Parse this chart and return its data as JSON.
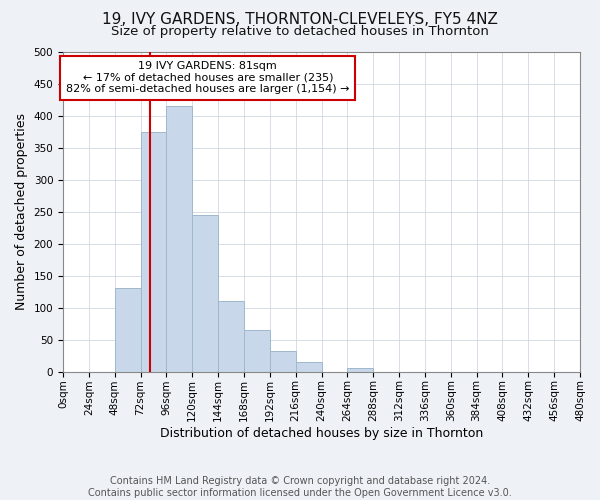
{
  "title": "19, IVY GARDENS, THORNTON-CLEVELEYS, FY5 4NZ",
  "subtitle": "Size of property relative to detached houses in Thornton",
  "xlabel": "Distribution of detached houses by size in Thornton",
  "ylabel": "Number of detached properties",
  "footer_line1": "Contains HM Land Registry data © Crown copyright and database right 2024.",
  "footer_line2": "Contains public sector information licensed under the Open Government Licence v3.0.",
  "bin_edges": [
    0,
    24,
    48,
    72,
    96,
    120,
    144,
    168,
    192,
    216,
    240,
    264,
    288,
    312,
    336,
    360,
    384,
    408,
    432,
    456,
    480
  ],
  "bar_heights": [
    0,
    0,
    130,
    375,
    415,
    245,
    110,
    65,
    32,
    15,
    0,
    5,
    0,
    0,
    0,
    0,
    0,
    0,
    0,
    0
  ],
  "bar_color": "#c8d8ea",
  "bar_edgecolor": "#a0b8cc",
  "property_size": 81,
  "vline_color": "#cc0000",
  "annotation_text": "19 IVY GARDENS: 81sqm\n← 17% of detached houses are smaller (235)\n82% of semi-detached houses are larger (1,154) →",
  "annotation_box_edgecolor": "#cc0000",
  "annotation_box_facecolor": "#ffffff",
  "ylim": [
    0,
    500
  ],
  "yticks": [
    0,
    50,
    100,
    150,
    200,
    250,
    300,
    350,
    400,
    450,
    500
  ],
  "background_color": "#eef2f7",
  "plot_background_color": "#ffffff",
  "grid_color": "#d0d8e4",
  "title_fontsize": 11,
  "subtitle_fontsize": 9.5,
  "tick_fontsize": 7.5,
  "label_fontsize": 9,
  "annotation_fontsize": 8,
  "footer_fontsize": 7
}
